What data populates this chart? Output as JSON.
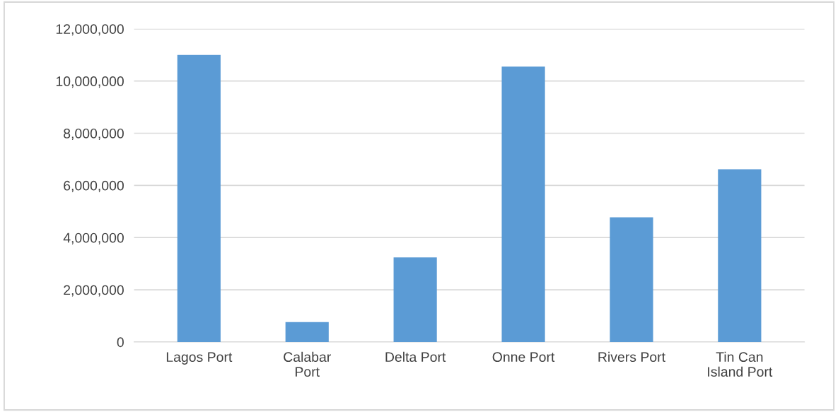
{
  "chart_data": {
    "type": "bar",
    "categories": [
      "Lagos Port",
      "Calabar\nPort",
      "Delta Port",
      "Onne Port",
      "Rivers Port",
      "Tin Can\nIsland Port"
    ],
    "values": [
      11000000,
      760000,
      3240000,
      10550000,
      4780000,
      6620000
    ],
    "color": "#5b9bd5",
    "ylim": [
      0,
      12000000
    ],
    "yticks": [
      {
        "value": 0,
        "label": "0"
      },
      {
        "value": 2000000,
        "label": "2,000,000"
      },
      {
        "value": 4000000,
        "label": "4,000,000"
      },
      {
        "value": 6000000,
        "label": "6,000,000"
      },
      {
        "value": 8000000,
        "label": "8,000,000"
      },
      {
        "value": 10000000,
        "label": "10,000,000"
      },
      {
        "value": 12000000,
        "label": "12,000,000"
      }
    ],
    "grid": "y"
  }
}
